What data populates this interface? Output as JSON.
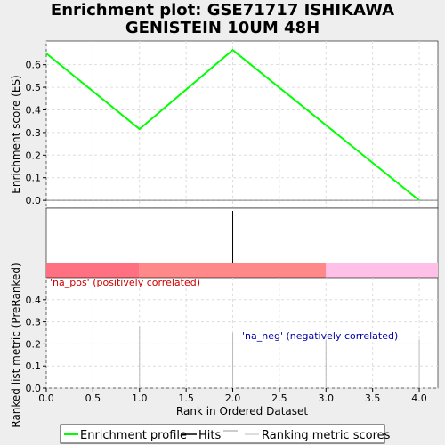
{
  "chart_data": {
    "type": "line",
    "title_lines": [
      "Enrichment plot: GSE71717 ISHIKAWA",
      "GENISTEIN 10UM 48H"
    ],
    "es_panel": {
      "ylabel": "Enrichment score (ES)",
      "ylim": [
        -0.035,
        0.705
      ],
      "yticks": [
        "0.0",
        "0.1",
        "0.2",
        "0.3",
        "0.4",
        "0.5",
        "0.6"
      ],
      "ytick_values": [
        0.0,
        0.1,
        0.2,
        0.3,
        0.4,
        0.5,
        0.6
      ],
      "grid": true,
      "series": [
        {
          "name": "Enrichment profile",
          "color": "#00ff00",
          "x": [
            0,
            1,
            2,
            4
          ],
          "y": [
            0.65,
            0.315,
            0.665,
            0.0
          ]
        }
      ]
    },
    "hits": {
      "x": [
        2
      ],
      "color": "#000000"
    },
    "color_bar": {
      "segments": [
        {
          "from": 0,
          "to": 1,
          "color": "#ff7080"
        },
        {
          "from": 1,
          "to": 3,
          "color": "#ff8888"
        },
        {
          "from": 3,
          "to": 4.2,
          "color": "#ffc0e8"
        }
      ]
    },
    "metric_panel": {
      "ylabel": "Ranked list metric (PreRanked)",
      "ylim": [
        0,
        0.5
      ],
      "yticks": [
        "0.0",
        "0.1",
        "0.2",
        "0.3",
        "0.4"
      ],
      "ytick_values": [
        0.0,
        0.1,
        0.2,
        0.3,
        0.4
      ],
      "grid": true,
      "x": [
        1,
        2,
        3,
        4
      ],
      "values": [
        0.28,
        0.25,
        0.22,
        0.22
      ],
      "annotation_pos": "'na_pos' (positively correlated)",
      "annotation_pos_color": "#cc0000",
      "annotation_neg": "'na_neg' (negatively correlated)",
      "annotation_neg_color": "#0000aa"
    },
    "xaxis": {
      "xlabel": "Rank in Ordered Dataset",
      "xlim": [
        0,
        4.2
      ],
      "xticks": [
        "0.0",
        "0.5",
        "1.0",
        "1.5",
        "2.0",
        "2.5",
        "3.0",
        "3.5",
        "4.0"
      ],
      "xtick_values": [
        0.0,
        0.5,
        1.0,
        1.5,
        2.0,
        2.5,
        3.0,
        3.5,
        4.0
      ]
    },
    "legend": {
      "placement": "bottom",
      "items": [
        {
          "label": "Enrichment profile",
          "color": "#00ff00"
        },
        {
          "label": "Hits",
          "color": "#000000"
        },
        {
          "label": "",
          "color": "#999999"
        },
        {
          "label": "Ranking metric scores",
          "color": "#bbbbbb"
        }
      ]
    }
  }
}
